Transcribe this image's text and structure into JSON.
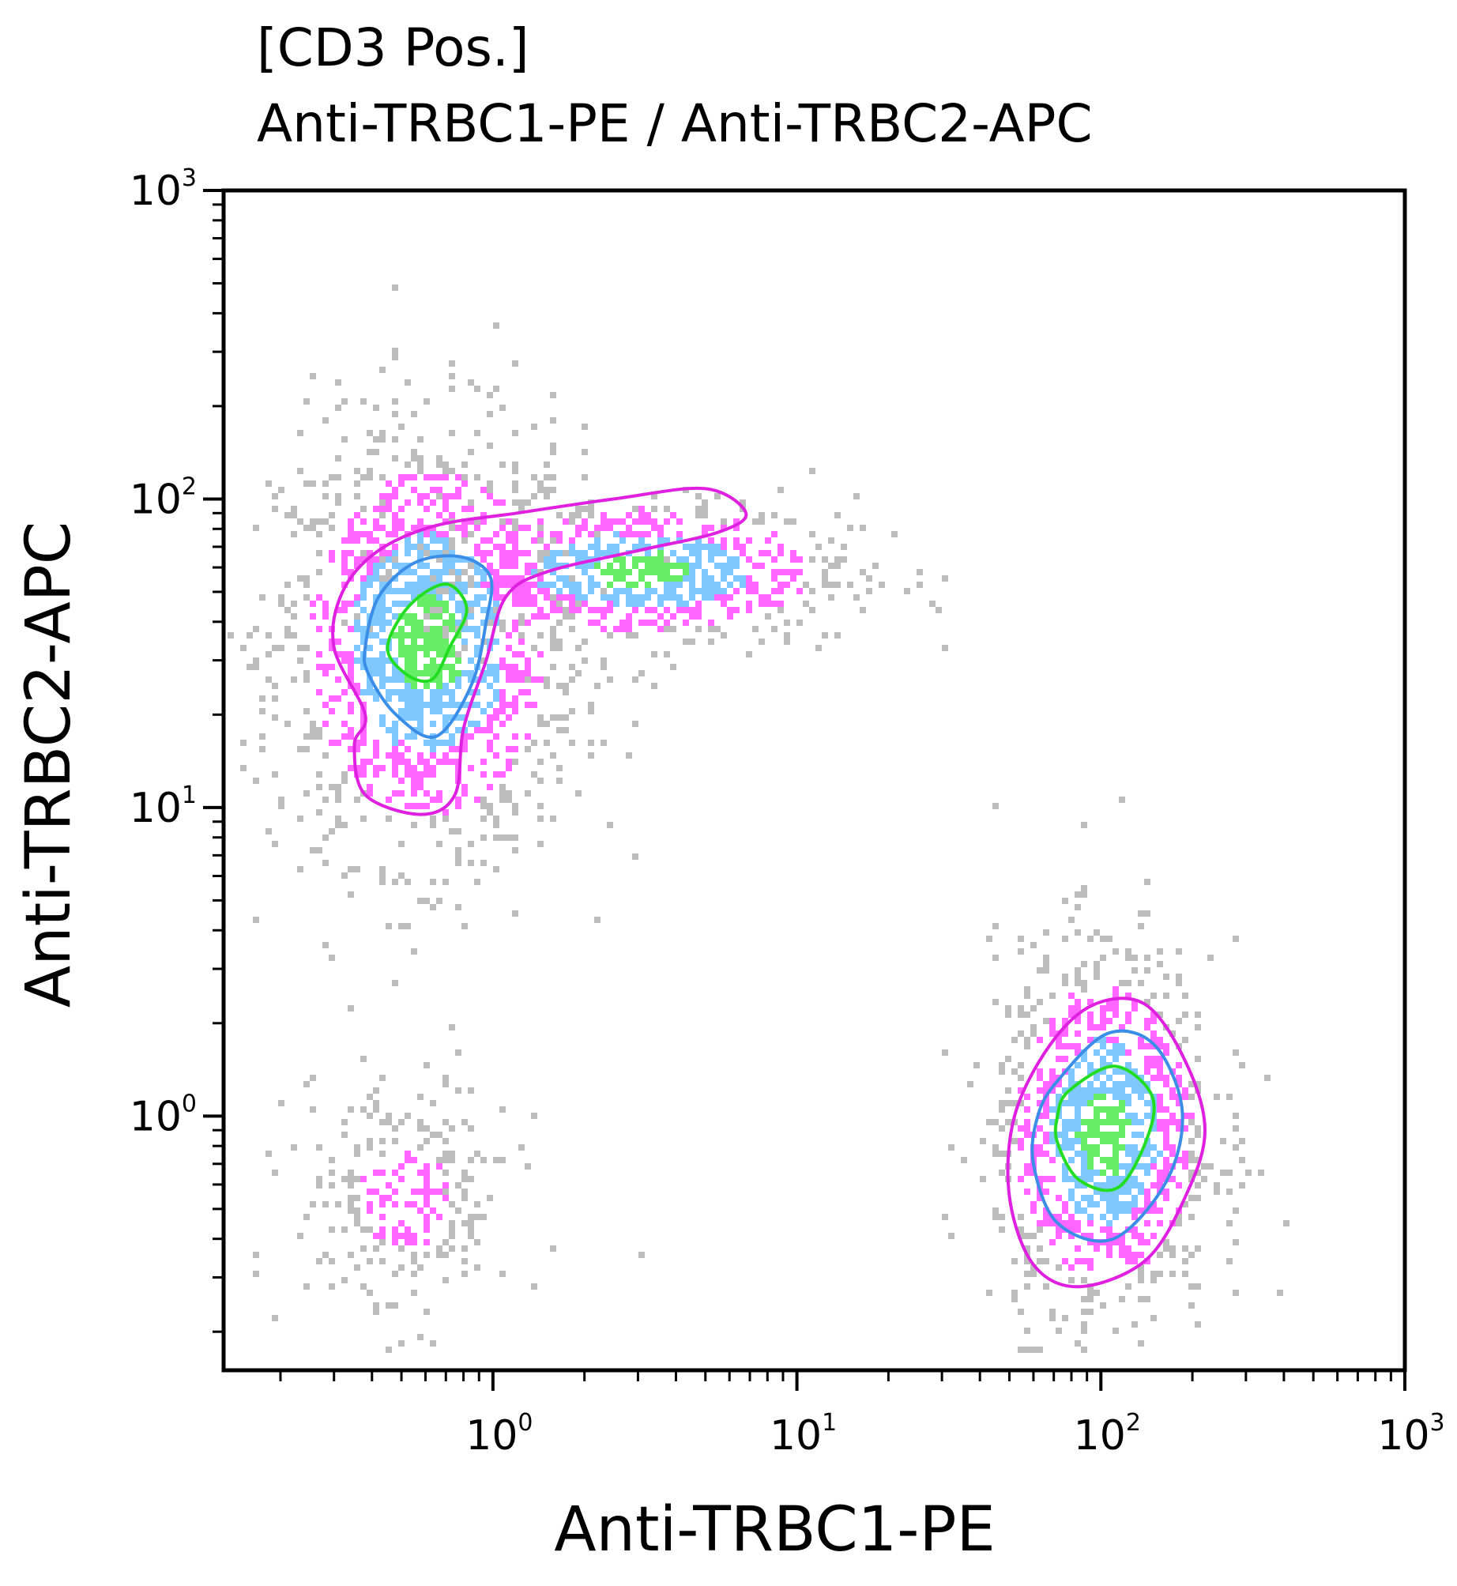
{
  "chart_data": {
    "type": "scatter",
    "subtype": "flow-cytometry-density-contour",
    "title": "[CD3 Pos.]",
    "subtitle": "Anti-TRBC1-PE / Anti-TRBC2-APC",
    "xlabel": "Anti-TRBC1-PE",
    "ylabel": "Anti-TRBC2-APC",
    "x_scale": "log",
    "y_scale": "log",
    "xlim": [
      0.13,
      1000
    ],
    "ylim": [
      0.15,
      1000
    ],
    "x_ticks": [
      {
        "value": 1,
        "base": "10",
        "exp": "0"
      },
      {
        "value": 10,
        "base": "10",
        "exp": "1"
      },
      {
        "value": 100,
        "base": "10",
        "exp": "2"
      },
      {
        "value": 1000,
        "base": "10",
        "exp": "3"
      }
    ],
    "y_ticks": [
      {
        "value": 1,
        "base": "10",
        "exp": "0"
      },
      {
        "value": 10,
        "base": "10",
        "exp": "1"
      },
      {
        "value": 100,
        "base": "10",
        "exp": "2"
      },
      {
        "value": 1000,
        "base": "10",
        "exp": "3"
      }
    ],
    "grid": false,
    "legend": "none",
    "colors": {
      "dots_low": "#bdbdbd",
      "dots_mid": "#ff66ff",
      "dots_high": "#7fc8ff",
      "dots_peak": "#66ee66",
      "contour_outer": "#e020e0",
      "contour_middle": "#3a8ee8",
      "contour_inner": "#22dd22"
    },
    "populations": [
      {
        "id": "trbc2-positive",
        "center": [
          0.6,
          35
        ],
        "log_spread": [
          0.25,
          0.35
        ]
      },
      {
        "id": "trbc2-tail",
        "center": [
          3.0,
          60
        ],
        "log_spread": [
          0.35,
          0.12
        ]
      },
      {
        "id": "trbc1-positive",
        "center": [
          100,
          0.9
        ],
        "log_spread": [
          0.18,
          0.3
        ]
      },
      {
        "id": "double-negative",
        "center": [
          0.5,
          0.55
        ],
        "log_spread": [
          0.18,
          0.2
        ]
      }
    ],
    "contours": [
      {
        "level": "outer",
        "population": "trbc2-positive",
        "points": [
          [
            0.3,
            33
          ],
          [
            0.32,
            50
          ],
          [
            0.42,
            68
          ],
          [
            0.65,
            82
          ],
          [
            1.2,
            90
          ],
          [
            2.5,
            100
          ],
          [
            5,
            108
          ],
          [
            6.8,
            90
          ],
          [
            5.5,
            78
          ],
          [
            3,
            68
          ],
          [
            1.5,
            58
          ],
          [
            1.1,
            48
          ],
          [
            0.95,
            30
          ],
          [
            0.8,
            18
          ],
          [
            0.75,
            11
          ],
          [
            0.58,
            9.5
          ],
          [
            0.38,
            11
          ],
          [
            0.35,
            16
          ],
          [
            0.38,
            20
          ]
        ]
      },
      {
        "level": "middle",
        "population": "trbc2-positive",
        "points": [
          [
            0.38,
            33
          ],
          [
            0.42,
            48
          ],
          [
            0.55,
            62
          ],
          [
            0.78,
            65
          ],
          [
            0.98,
            56
          ],
          [
            0.95,
            40
          ],
          [
            0.85,
            25
          ],
          [
            0.65,
            17
          ],
          [
            0.48,
            20
          ],
          [
            0.39,
            27
          ]
        ]
      },
      {
        "level": "inner",
        "population": "trbc2-positive",
        "points": [
          [
            0.45,
            33
          ],
          [
            0.53,
            45
          ],
          [
            0.7,
            53
          ],
          [
            0.82,
            44
          ],
          [
            0.72,
            33
          ],
          [
            0.63,
            26
          ],
          [
            0.52,
            27
          ]
        ]
      },
      {
        "level": "outer",
        "population": "trbc1-positive",
        "points": [
          [
            68,
            1.7
          ],
          [
            95,
            2.3
          ],
          [
            140,
            2.3
          ],
          [
            190,
            1.5
          ],
          [
            220,
            0.9
          ],
          [
            190,
            0.55
          ],
          [
            140,
            0.34
          ],
          [
            85,
            0.28
          ],
          [
            60,
            0.33
          ],
          [
            50,
            0.55
          ],
          [
            52,
            1.0
          ]
        ]
      },
      {
        "level": "middle",
        "population": "trbc1-positive",
        "points": [
          [
            72,
            1.3
          ],
          [
            105,
            1.85
          ],
          [
            150,
            1.7
          ],
          [
            185,
            1.05
          ],
          [
            165,
            0.62
          ],
          [
            110,
            0.4
          ],
          [
            72,
            0.45
          ],
          [
            60,
            0.7
          ],
          [
            62,
            1.0
          ]
        ]
      },
      {
        "level": "inner",
        "population": "trbc1-positive",
        "points": [
          [
            78,
            1.2
          ],
          [
            110,
            1.45
          ],
          [
            145,
            1.2
          ],
          [
            145,
            0.9
          ],
          [
            115,
            0.59
          ],
          [
            85,
            0.62
          ],
          [
            72,
            0.82
          ],
          [
            72,
            1.0
          ]
        ]
      }
    ]
  }
}
